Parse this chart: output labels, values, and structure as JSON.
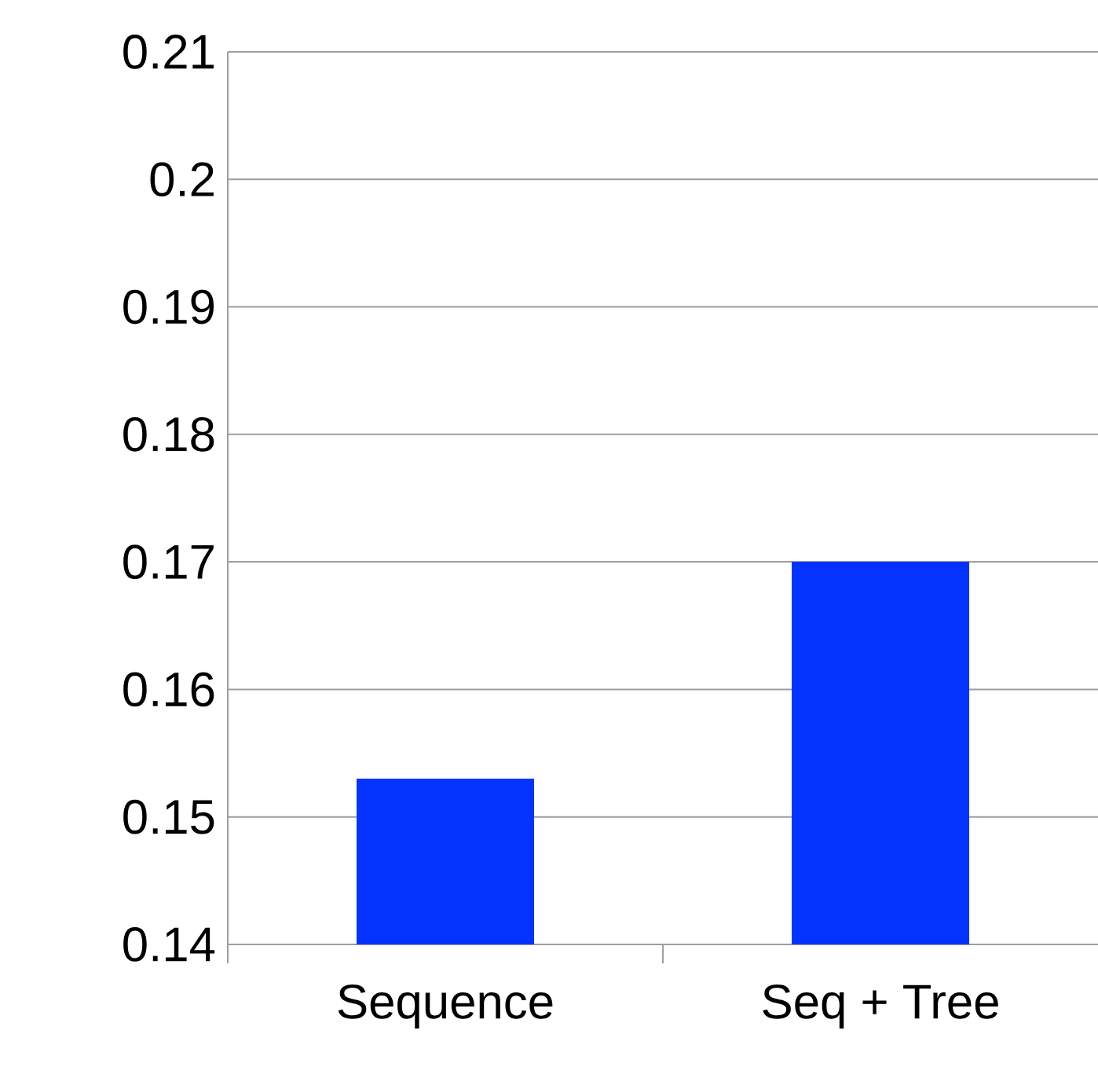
{
  "chart_data": {
    "type": "bar",
    "categories": [
      "Sequence",
      "Seq + Tree"
    ],
    "values": [
      0.153,
      0.17
    ],
    "color": "#0433ff",
    "ylim": [
      0.14,
      0.21
    ],
    "yticks": [
      0.14,
      0.15,
      0.16,
      0.17,
      0.18,
      0.19,
      0.2,
      0.21
    ],
    "grid": "y"
  }
}
